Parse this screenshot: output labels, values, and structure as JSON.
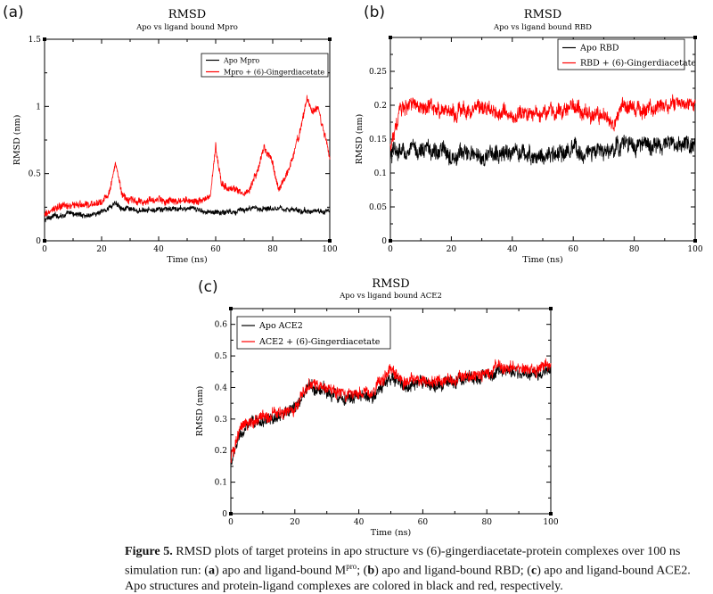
{
  "panels": {
    "a": {
      "letter": "(a)"
    },
    "b": {
      "letter": "(b)"
    },
    "c": {
      "letter": "(c)"
    }
  },
  "caption": {
    "label": "Figure 5.",
    "text_1": " RMSD plots of target proteins in apo structure vs (6)-gingerdiacetate-protein complexes over 100 ns simulation run: (",
    "a": "a",
    "text_2": ") apo and ligand-bound M",
    "sup": "pro",
    "text_3": "; (",
    "b": "b",
    "text_4": ") apo and ligand-bound RBD; (",
    "c": "c",
    "text_5": ") apo and ligand-bound ACE2. Apo structures and protein-ligand complexes are colored in black and red, respectively."
  },
  "colors": {
    "apo": "#000000",
    "ligand": "#ff0000"
  },
  "chart_data": [
    {
      "id": "a",
      "type": "line",
      "title": "RMSD",
      "subtitle": "Apo vs ligand bound Mpro",
      "xlabel": "Time (ns)",
      "ylabel": "RMSD (nm)",
      "xlim": [
        0,
        100
      ],
      "ylim": [
        0,
        1.5
      ],
      "xticks": [
        0,
        20,
        40,
        60,
        80,
        100
      ],
      "yticks": [
        0,
        0.5,
        1,
        1.5
      ],
      "ytick_labels": [
        "0",
        "0.5",
        "1",
        "1.5"
      ],
      "legend_position": "top-right",
      "series": [
        {
          "name": "Apo Mpro",
          "color": "#000000",
          "x": [
            0,
            2,
            5,
            10,
            15,
            20,
            22,
            25,
            28,
            32,
            40,
            50,
            60,
            70,
            80,
            90,
            100
          ],
          "y": [
            0.15,
            0.18,
            0.19,
            0.2,
            0.19,
            0.21,
            0.24,
            0.28,
            0.24,
            0.22,
            0.23,
            0.24,
            0.21,
            0.23,
            0.25,
            0.22,
            0.22
          ],
          "noise": 0.014
        },
        {
          "name": "Mpro + (6)-Gingerdiacetate",
          "color": "#ff0000",
          "x": [
            0,
            3,
            6,
            10,
            15,
            20,
            23,
            25,
            27,
            30,
            35,
            40,
            45,
            50,
            55,
            58,
            60,
            62,
            64,
            66,
            70,
            72,
            75,
            77,
            80,
            82,
            84,
            86,
            88,
            90,
            92,
            94,
            96,
            98,
            100
          ],
          "y": [
            0.18,
            0.24,
            0.25,
            0.27,
            0.26,
            0.29,
            0.38,
            0.58,
            0.35,
            0.3,
            0.29,
            0.3,
            0.29,
            0.3,
            0.3,
            0.33,
            0.7,
            0.42,
            0.38,
            0.4,
            0.35,
            0.4,
            0.55,
            0.7,
            0.6,
            0.38,
            0.45,
            0.55,
            0.7,
            0.85,
            1.05,
            0.95,
            1.0,
            0.8,
            0.62
          ],
          "noise": 0.02
        }
      ]
    },
    {
      "id": "b",
      "type": "line",
      "title": "RMSD",
      "subtitle": "Apo vs ligand bound RBD",
      "xlabel": "Time (ns)",
      "ylabel": "RMSD (nm)",
      "xlim": [
        0,
        100
      ],
      "ylim": [
        0,
        0.3
      ],
      "xticks": [
        0,
        20,
        40,
        60,
        80,
        100
      ],
      "yticks": [
        0,
        0.05,
        0.1,
        0.15,
        0.2,
        0.25
      ],
      "ytick_labels": [
        "0",
        "0.05",
        "0.1",
        "0.15",
        "0.2",
        "0.25"
      ],
      "legend_position": "top-right",
      "series": [
        {
          "name": "Apo RBD",
          "color": "#000000",
          "x": [
            0,
            1,
            3,
            10,
            20,
            30,
            40,
            50,
            60,
            70,
            74,
            76,
            80,
            90,
            100
          ],
          "y": [
            0.12,
            0.13,
            0.13,
            0.135,
            0.13,
            0.125,
            0.13,
            0.125,
            0.13,
            0.13,
            0.135,
            0.145,
            0.14,
            0.14,
            0.14
          ],
          "noise": 0.009
        },
        {
          "name": "RBD + (6)-Gingerdiacetate",
          "color": "#ff0000",
          "x": [
            0,
            1,
            3,
            5,
            10,
            20,
            30,
            40,
            50,
            60,
            70,
            74,
            76,
            80,
            90,
            100
          ],
          "y": [
            0.14,
            0.16,
            0.185,
            0.2,
            0.2,
            0.19,
            0.195,
            0.185,
            0.19,
            0.195,
            0.185,
            0.18,
            0.2,
            0.195,
            0.2,
            0.2
          ],
          "noise": 0.008
        }
      ]
    },
    {
      "id": "c",
      "type": "line",
      "title": "RMSD",
      "subtitle": "Apo vs ligand bound ACE2",
      "xlabel": "Time (ns)",
      "ylabel": "RMSD (nm)",
      "xlim": [
        0,
        100
      ],
      "ylim": [
        0,
        0.65
      ],
      "xticks": [
        0,
        20,
        40,
        60,
        80,
        100
      ],
      "yticks": [
        0,
        0.1,
        0.2,
        0.3,
        0.4,
        0.5,
        0.6
      ],
      "ytick_labels": [
        "0",
        "0.1",
        "0.2",
        "0.3",
        "0.4",
        "0.5",
        "0.6"
      ],
      "legend_position": "top-left",
      "series": [
        {
          "name": "Apo ACE2",
          "color": "#000000",
          "x": [
            0,
            1,
            3,
            5,
            8,
            12,
            16,
            20,
            22,
            24,
            30,
            35,
            40,
            45,
            50,
            55,
            60,
            65,
            70,
            75,
            80,
            85,
            90,
            95,
            100
          ],
          "y": [
            0.16,
            0.19,
            0.25,
            0.27,
            0.29,
            0.3,
            0.31,
            0.33,
            0.36,
            0.4,
            0.39,
            0.37,
            0.37,
            0.38,
            0.43,
            0.4,
            0.41,
            0.41,
            0.42,
            0.43,
            0.44,
            0.45,
            0.45,
            0.44,
            0.45
          ],
          "noise": 0.014
        },
        {
          "name": "ACE2 + (6)-Gingerdiacetate",
          "color": "#ff0000",
          "x": [
            0,
            1,
            3,
            5,
            8,
            12,
            16,
            20,
            22,
            24,
            30,
            35,
            40,
            45,
            50,
            55,
            60,
            65,
            70,
            75,
            80,
            85,
            90,
            95,
            100
          ],
          "y": [
            0.17,
            0.21,
            0.27,
            0.28,
            0.3,
            0.31,
            0.32,
            0.34,
            0.38,
            0.41,
            0.4,
            0.38,
            0.38,
            0.39,
            0.45,
            0.42,
            0.42,
            0.42,
            0.43,
            0.44,
            0.45,
            0.46,
            0.46,
            0.45,
            0.47
          ],
          "noise": 0.014
        }
      ]
    }
  ]
}
